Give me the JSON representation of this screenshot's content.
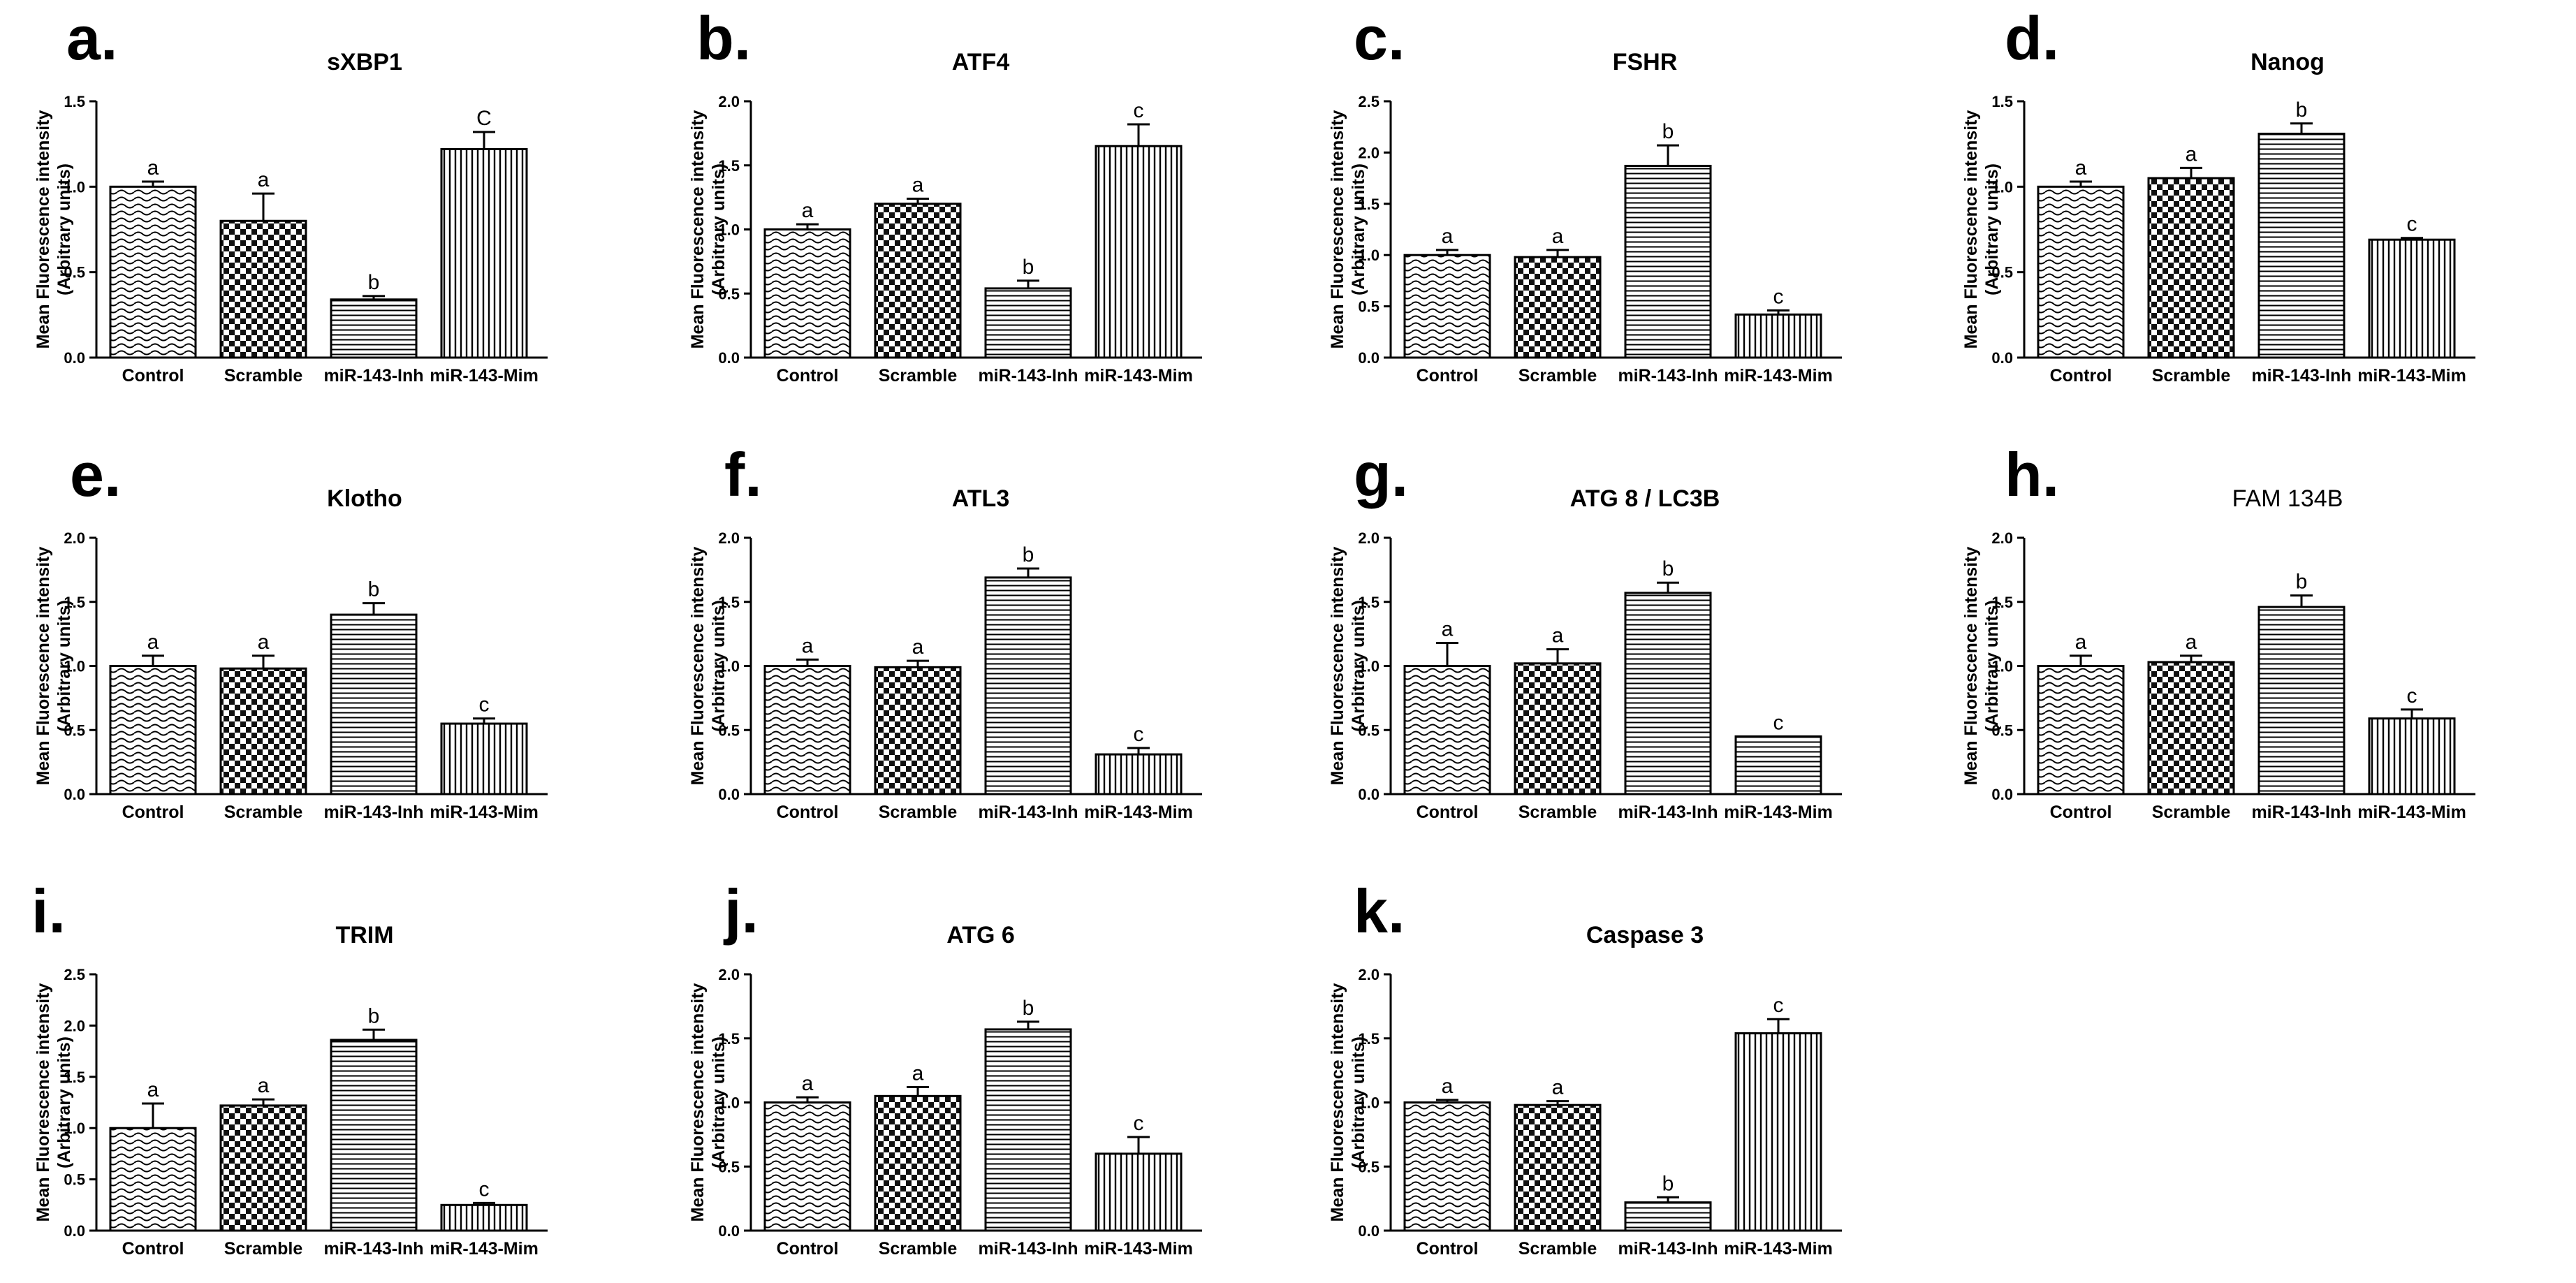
{
  "figure": {
    "y_axis_label_line1": "Mean Fluorescence intensity",
    "y_axis_label_line2": "(Arbitrary units)"
  },
  "chart_data": [
    {
      "id": "a",
      "letter": "a.",
      "type": "bar",
      "title": "sXBP1",
      "categories": [
        "Control",
        "Scramble",
        "miR-143-Inh",
        "miR-143-Mim"
      ],
      "values": [
        1.0,
        0.8,
        0.34,
        1.22
      ],
      "errors": [
        0.03,
        0.16,
        0.02,
        0.1
      ],
      "significance": [
        "a",
        "a",
        "b",
        "C"
      ],
      "patterns": [
        "wave",
        "check",
        "hlines",
        "vlines"
      ],
      "ylim": [
        0,
        1.5
      ],
      "yticks": [
        0.0,
        0.5,
        1.0,
        1.5
      ],
      "ytick_labels": [
        "0.0",
        "0.5",
        "1.0",
        "1.5"
      ],
      "ylabel": "Mean Fluorescence intensity (Arbitrary units)"
    },
    {
      "id": "b",
      "letter": "b.",
      "type": "bar",
      "title": "ATF4",
      "categories": [
        "Control",
        "Scramble",
        "miR-143-Inh",
        "miR-143-Mim"
      ],
      "values": [
        1.0,
        1.2,
        0.54,
        1.65
      ],
      "errors": [
        0.04,
        0.04,
        0.06,
        0.17
      ],
      "significance": [
        "a",
        "a",
        "b",
        "c"
      ],
      "patterns": [
        "wave",
        "check",
        "hlines",
        "vlines"
      ],
      "ylim": [
        0,
        2.0
      ],
      "yticks": [
        0.0,
        0.5,
        1.0,
        1.5,
        2.0
      ],
      "ytick_labels": [
        "0.0",
        "0.5",
        "1.0",
        "1.5",
        "2.0"
      ],
      "ylabel": "Mean Fluorescence intensity (Arbitrary units)"
    },
    {
      "id": "c",
      "letter": "c.",
      "type": "bar",
      "title": "FSHR",
      "categories": [
        "Control",
        "Scramble",
        "miR-143-Inh",
        "miR-143-Mim"
      ],
      "values": [
        1.0,
        0.98,
        1.87,
        0.42
      ],
      "errors": [
        0.05,
        0.07,
        0.2,
        0.04
      ],
      "significance": [
        "a",
        "a",
        "b",
        "c"
      ],
      "patterns": [
        "wave",
        "check",
        "hlines",
        "vlines"
      ],
      "ylim": [
        0,
        2.5
      ],
      "yticks": [
        0.0,
        0.5,
        1.0,
        1.5,
        2.0,
        2.5
      ],
      "ytick_labels": [
        "0.0",
        "0.5",
        "1.0",
        "1.5",
        "2.0",
        "2.5"
      ],
      "ylabel": "Mean Fluorescence intensity (Arbitrary units)"
    },
    {
      "id": "d",
      "letter": "d.",
      "type": "bar",
      "title": "Nanog",
      "categories": [
        "Control",
        "Scramble",
        "miR-143-Inh",
        "miR-143-Mim"
      ],
      "values": [
        1.0,
        1.05,
        1.31,
        0.69
      ],
      "errors": [
        0.03,
        0.06,
        0.06,
        0.01
      ],
      "significance": [
        "a",
        "a",
        "b",
        "c"
      ],
      "patterns": [
        "wave",
        "check",
        "hlines",
        "vlines"
      ],
      "ylim": [
        0,
        1.5
      ],
      "yticks": [
        0.0,
        0.5,
        1.0,
        1.5
      ],
      "ytick_labels": [
        "0.0",
        "0.5",
        "1.0",
        "1.5"
      ],
      "ylabel": "Mean Fluorescence intensity (Arbitrary units)"
    },
    {
      "id": "e",
      "letter": "e.",
      "type": "bar",
      "title": "Klotho",
      "categories": [
        "Control",
        "Scramble",
        "miR-143-Inh",
        "miR-143-Mim"
      ],
      "values": [
        1.0,
        0.98,
        1.4,
        0.55
      ],
      "errors": [
        0.08,
        0.1,
        0.09,
        0.04
      ],
      "significance": [
        "a",
        "a",
        "b",
        "c"
      ],
      "patterns": [
        "wave",
        "check",
        "hlines",
        "vlines"
      ],
      "ylim": [
        0,
        2.0
      ],
      "yticks": [
        0.0,
        0.5,
        1.0,
        1.5,
        2.0
      ],
      "ytick_labels": [
        "0.0",
        "0.5",
        "1.0",
        "1.5",
        "2.0"
      ],
      "ylabel": "Mean Fluorescence intensity (Arbitrary units)"
    },
    {
      "id": "f",
      "letter": "f.",
      "type": "bar",
      "title": "ATL3",
      "categories": [
        "Control",
        "Scramble",
        "miR-143-Inh",
        "miR-143-Mim"
      ],
      "values": [
        1.0,
        0.99,
        1.69,
        0.31
      ],
      "errors": [
        0.05,
        0.05,
        0.07,
        0.05
      ],
      "significance": [
        "a",
        "a",
        "b",
        "c"
      ],
      "patterns": [
        "wave",
        "check",
        "hlines",
        "vlines"
      ],
      "ylim": [
        0,
        2.0
      ],
      "yticks": [
        0.0,
        0.5,
        1.0,
        1.5,
        2.0
      ],
      "ytick_labels": [
        "0.0",
        "0.5",
        "1.0",
        "1.5",
        "2.0"
      ],
      "ylabel": "Mean Fluorescence intensity (Arbitrary units)"
    },
    {
      "id": "g",
      "letter": "g.",
      "type": "bar",
      "title": "ATG 8 / LC3B",
      "categories": [
        "Control",
        "Scramble",
        "miR-143-Inh",
        "miR-143-Mim"
      ],
      "values": [
        1.0,
        1.02,
        1.57,
        0.45
      ],
      "errors": [
        0.18,
        0.11,
        0.08,
        0.0
      ],
      "significance": [
        "a",
        "a",
        "b",
        "c"
      ],
      "patterns": [
        "wave",
        "check",
        "hlines",
        "hlines"
      ],
      "ylim": [
        0,
        2.0
      ],
      "yticks": [
        0.0,
        0.5,
        1.0,
        1.5,
        2.0
      ],
      "ytick_labels": [
        "0.0",
        "0.5",
        "1.0",
        "1.5",
        "2.0"
      ],
      "ylabel": "Mean Fluorescence intensity (Arbitrary units)"
    },
    {
      "id": "h",
      "letter": "h.",
      "type": "bar",
      "title": "FAM 134B",
      "title_weight": "normal",
      "categories": [
        "Control",
        "Scramble",
        "miR-143-Inh",
        "miR-143-Mim"
      ],
      "values": [
        1.0,
        1.03,
        1.46,
        0.59
      ],
      "errors": [
        0.08,
        0.05,
        0.09,
        0.07
      ],
      "significance": [
        "a",
        "a",
        "b",
        "c"
      ],
      "patterns": [
        "wave",
        "check",
        "hlines",
        "vlines"
      ],
      "ylim": [
        0,
        2.0
      ],
      "yticks": [
        0.0,
        0.5,
        1.0,
        1.5,
        2.0
      ],
      "ytick_labels": [
        "0.0",
        "0.5",
        "1.0",
        "1.5",
        "2.0"
      ],
      "ylabel": "Mean Fluorescence intensity (Arbitrary units)"
    },
    {
      "id": "i",
      "letter": "i.",
      "type": "bar",
      "title": "TRIM",
      "categories": [
        "Control",
        "Scramble",
        "miR-143-Inh",
        "miR-143-Mim"
      ],
      "values": [
        1.0,
        1.22,
        1.86,
        0.25
      ],
      "errors": [
        0.24,
        0.06,
        0.1,
        0.02
      ],
      "significance": [
        "a",
        "a",
        "b",
        "c"
      ],
      "patterns": [
        "wave",
        "check",
        "hlines",
        "vlines"
      ],
      "ylim": [
        0,
        2.5
      ],
      "yticks": [
        0.0,
        0.5,
        1.0,
        1.5,
        2.0,
        2.5
      ],
      "ytick_labels": [
        "0.0",
        "0.5",
        "1.0",
        "1.5",
        "2.0",
        "2.5"
      ],
      "ylabel": "Mean Fluorescence intensity (Arbitrary units)"
    },
    {
      "id": "j",
      "letter": "j.",
      "type": "bar",
      "title": "ATG 6",
      "categories": [
        "Control",
        "Scramble",
        "miR-143-Inh",
        "miR-143-Mim"
      ],
      "values": [
        1.0,
        1.05,
        1.57,
        0.6
      ],
      "errors": [
        0.04,
        0.07,
        0.06,
        0.13
      ],
      "significance": [
        "a",
        "a",
        "b",
        "c"
      ],
      "patterns": [
        "wave",
        "check",
        "hlines",
        "vlines"
      ],
      "ylim": [
        0,
        2.0
      ],
      "yticks": [
        0.0,
        0.5,
        1.0,
        1.5,
        2.0
      ],
      "ytick_labels": [
        "0.0",
        "0.5",
        "1.0",
        "1.5",
        "2.0"
      ],
      "ylabel": "Mean Fluorescence intensity (Arbitrary units)"
    },
    {
      "id": "k",
      "letter": "k.",
      "type": "bar",
      "title": "Caspase 3",
      "categories": [
        "Control",
        "Scramble",
        "miR-143-Inh",
        "miR-143-Mim"
      ],
      "values": [
        1.0,
        0.98,
        0.22,
        1.54
      ],
      "errors": [
        0.02,
        0.03,
        0.04,
        0.11
      ],
      "significance": [
        "a",
        "a",
        "b",
        "c"
      ],
      "patterns": [
        "wave",
        "check",
        "hlines",
        "vlines"
      ],
      "ylim": [
        0,
        2.0
      ],
      "yticks": [
        0.0,
        0.5,
        1.0,
        1.5,
        2.0
      ],
      "ytick_labels": [
        "0.0",
        "0.5",
        "1.0",
        "1.5",
        "2.0"
      ],
      "ylabel": "Mean Fluorescence intensity (Arbitrary units)"
    }
  ]
}
